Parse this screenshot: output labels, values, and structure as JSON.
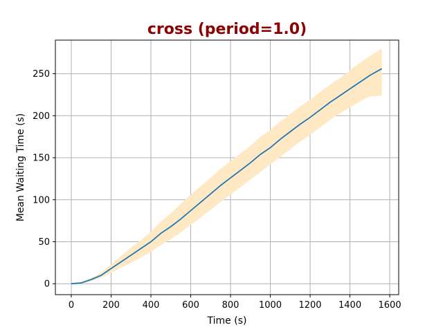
{
  "chart_data": {
    "type": "line",
    "title": "cross (period=1.0)",
    "title_color": "#8b0000",
    "xlabel": "Time (s)",
    "ylabel": "Mean Waiting Time (s)",
    "xlim": [
      -80,
      1645
    ],
    "ylim": [
      -13,
      290
    ],
    "xticks": [
      0,
      200,
      400,
      600,
      800,
      1000,
      1200,
      1400,
      1600
    ],
    "yticks": [
      0,
      50,
      100,
      150,
      200,
      250
    ],
    "grid": true,
    "series": [
      {
        "color": "#1f77b4",
        "x": [
          0,
          50,
          100,
          150,
          200,
          250,
          300,
          350,
          400,
          450,
          500,
          550,
          600,
          650,
          700,
          750,
          800,
          850,
          900,
          950,
          1000,
          1050,
          1100,
          1150,
          1200,
          1250,
          1300,
          1350,
          1400,
          1450,
          1500,
          1560
        ],
        "y": [
          0,
          1,
          5,
          10,
          18,
          26,
          34,
          42,
          50,
          60,
          68,
          77,
          87,
          97,
          107,
          117,
          126,
          135,
          144,
          154,
          162,
          172,
          181,
          190,
          198,
          207,
          216,
          224,
          232,
          240,
          248,
          256
        ],
        "band_lower": [
          0,
          0,
          3,
          7,
          13,
          19,
          25,
          31,
          38,
          46,
          53,
          61,
          70,
          79,
          88,
          97,
          106,
          115,
          124,
          133,
          142,
          151,
          160,
          169,
          177,
          186,
          195,
          203,
          210,
          217,
          223,
          224
        ],
        "band_upper": [
          0,
          2,
          7,
          13,
          23,
          33,
          43,
          52,
          62,
          74,
          84,
          95,
          106,
          116,
          126,
          137,
          146,
          155,
          164,
          175,
          183,
          193,
          202,
          211,
          219,
          228,
          237,
          245,
          254,
          263,
          271,
          280
        ],
        "band_color": "#ffe9c4"
      }
    ]
  }
}
